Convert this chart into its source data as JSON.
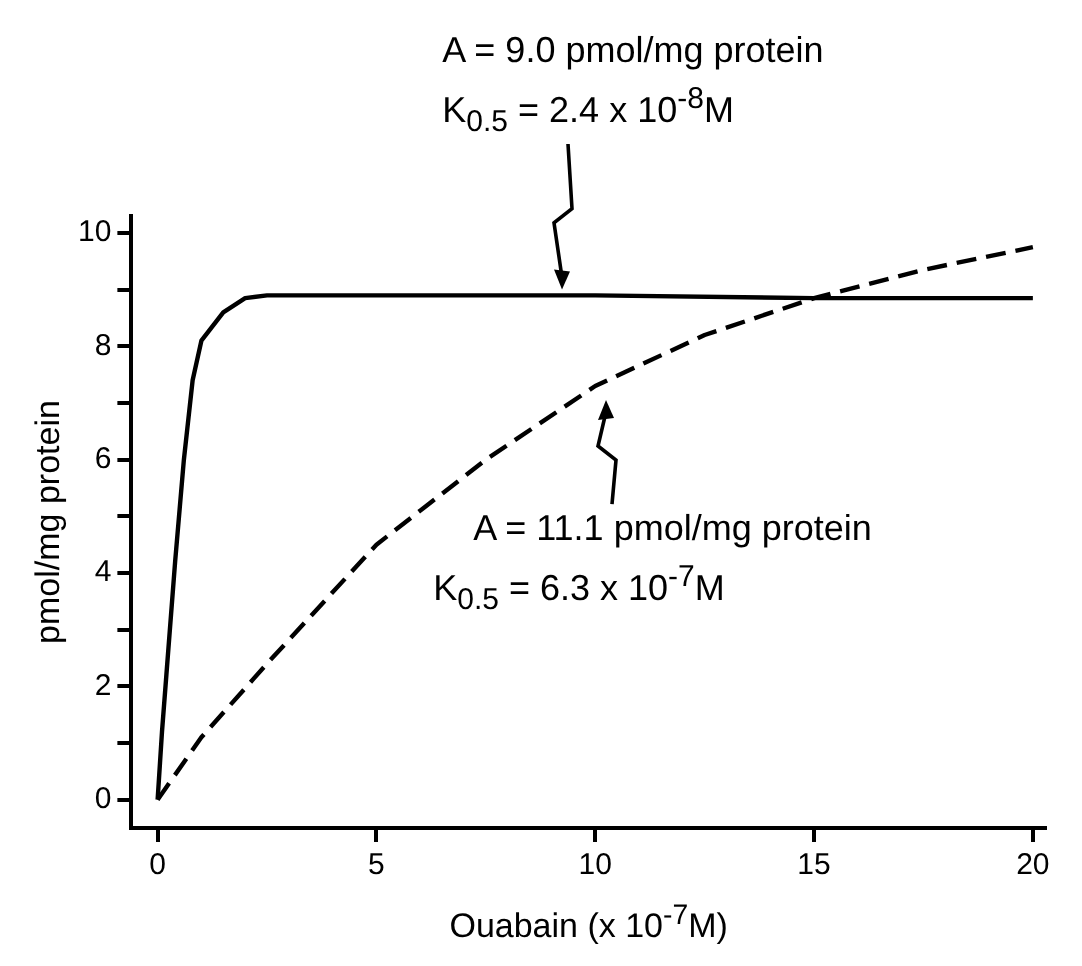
{
  "chart_data": {
    "type": "line",
    "xlabel": "Ouabain (x 10$^{-7}$M)",
    "ylabel": "pmol/mg protein",
    "xlim": [
      -0.6,
      20.3
    ],
    "ylim": [
      -0.5,
      10.3
    ],
    "xticks": [
      0,
      5,
      10,
      15,
      20
    ],
    "yticks": [
      0,
      {
        "value": 1,
        "label": null
      },
      2,
      {
        "value": 3,
        "label": null
      },
      4,
      {
        "value": 5,
        "label": null
      },
      6,
      {
        "value": 7,
        "label": null
      },
      8,
      {
        "value": 9,
        "label": null
      },
      10
    ],
    "grid": false,
    "series": [
      {
        "color": "#000000",
        "line_style": "solid",
        "x": [
          0,
          0.1,
          0.2,
          0.4,
          0.6,
          0.8,
          1.0,
          1.5,
          2.0,
          2.5,
          5,
          10,
          15,
          20
        ],
        "values": [
          0,
          1.2,
          2.2,
          4.2,
          6.0,
          7.4,
          8.1,
          8.6,
          8.85,
          8.9,
          8.9,
          8.9,
          8.85,
          8.85
        ]
      },
      {
        "color": "#000000",
        "line_style": "dashed",
        "x": [
          0,
          1,
          2.5,
          5,
          7.5,
          10,
          12.5,
          15,
          17.5,
          20
        ],
        "values": [
          0,
          1.1,
          2.4,
          4.5,
          6.0,
          7.3,
          8.2,
          8.85,
          9.35,
          9.75
        ]
      }
    ],
    "annotations": [
      "A = 9.0 pmol/mg protein\nK$_{0.5}$ = 2.4 x 10$^{-8}$M",
      "A = 11.1 pmol/mg protein\nK$_{0.5}$ = 6.3 x 10$^{-7}$M"
    ]
  }
}
